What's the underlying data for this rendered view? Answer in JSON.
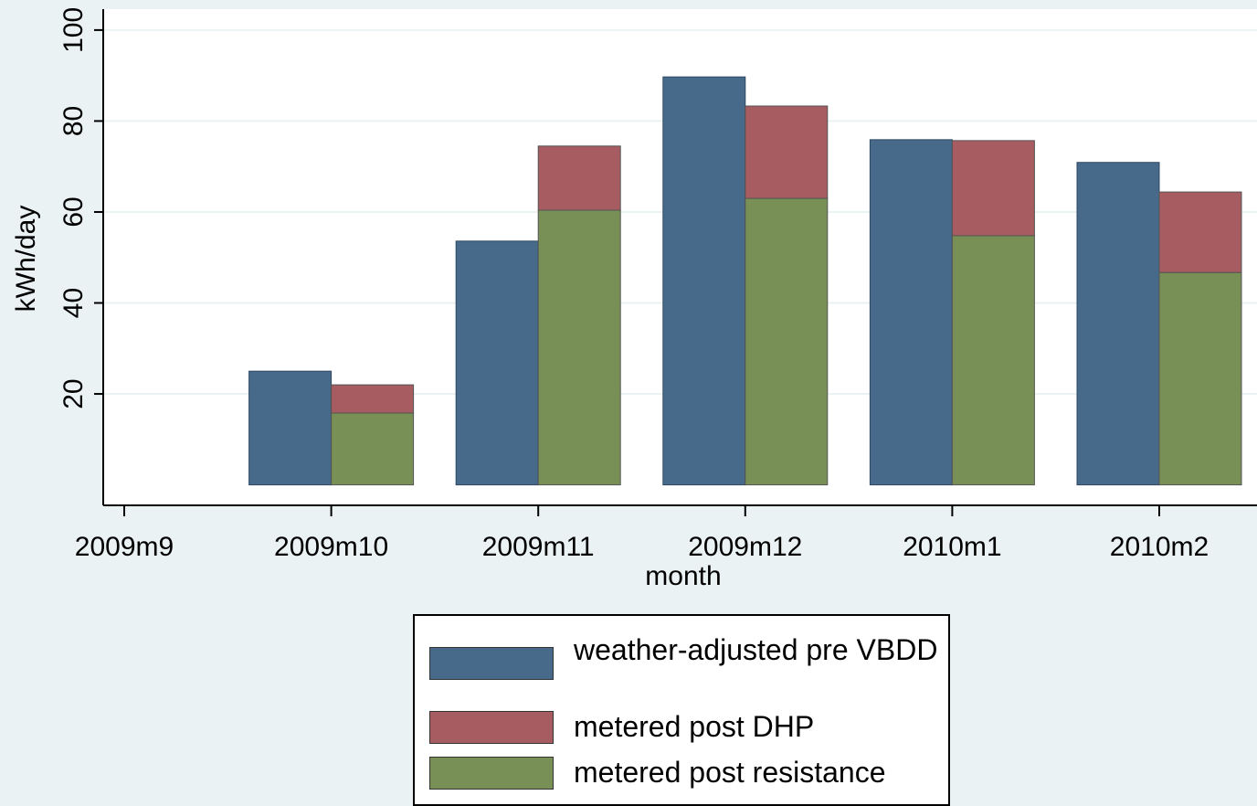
{
  "chart_data": {
    "type": "bar",
    "stacked_series": [
      1,
      2
    ],
    "x_label": "month",
    "y_label": "kWh/day",
    "categories": [
      "2009m9",
      "2009m10",
      "2009m11",
      "2009m12",
      "2010m1",
      "2010m2"
    ],
    "series": [
      {
        "name": "weather-adjusted pre VBDD",
        "color": "#476a8a",
        "values": [
          null,
          25.0,
          53.6,
          89.7,
          75.9,
          70.9
        ]
      },
      {
        "name": "metered post DHP",
        "color": "#a65c60",
        "values": [
          null,
          6.2,
          14.1,
          20.3,
          20.9,
          17.7
        ]
      },
      {
        "name": "metered post resistance",
        "color": "#788f55",
        "values": [
          null,
          15.8,
          60.4,
          63.0,
          54.8,
          46.7
        ]
      }
    ],
    "ylim": [
      -4.5,
      104.6
    ],
    "yticks": [
      20,
      40,
      60,
      80,
      100
    ],
    "grid": true
  }
}
